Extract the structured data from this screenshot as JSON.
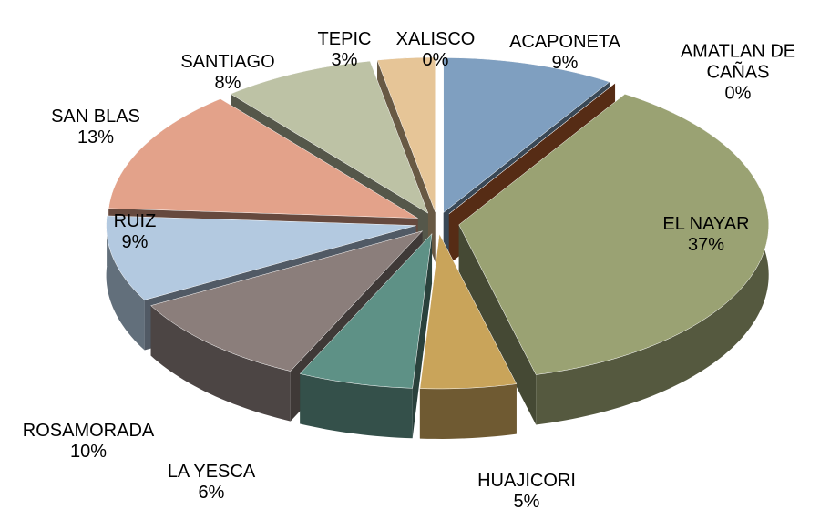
{
  "chart_data": {
    "type": "pie",
    "categories": [
      "ACAPONETA",
      "AMATLAN DE CAÑAS",
      "EL NAYAR",
      "HUAJICORI",
      "LA YESCA",
      "ROSAMORADA",
      "RUIZ",
      "SAN BLAS",
      "SANTIAGO",
      "TEPIC",
      "XALISCO"
    ],
    "values": [
      9,
      0,
      37,
      5,
      6,
      10,
      9,
      13,
      8,
      3,
      0
    ],
    "value_labels": [
      "9%",
      "0%",
      "37%",
      "5%",
      "6%",
      "10%",
      "9%",
      "13%",
      "8%",
      "3%",
      "0%"
    ],
    "colors": [
      "#7f9fc0",
      "#c0622f",
      "#9aa273",
      "#c9a45a",
      "#5e9186",
      "#8b7e7b",
      "#b3c9e0",
      "#e3a28a",
      "#bdc2a5",
      "#e6c597",
      "#bcd4d6"
    ]
  }
}
